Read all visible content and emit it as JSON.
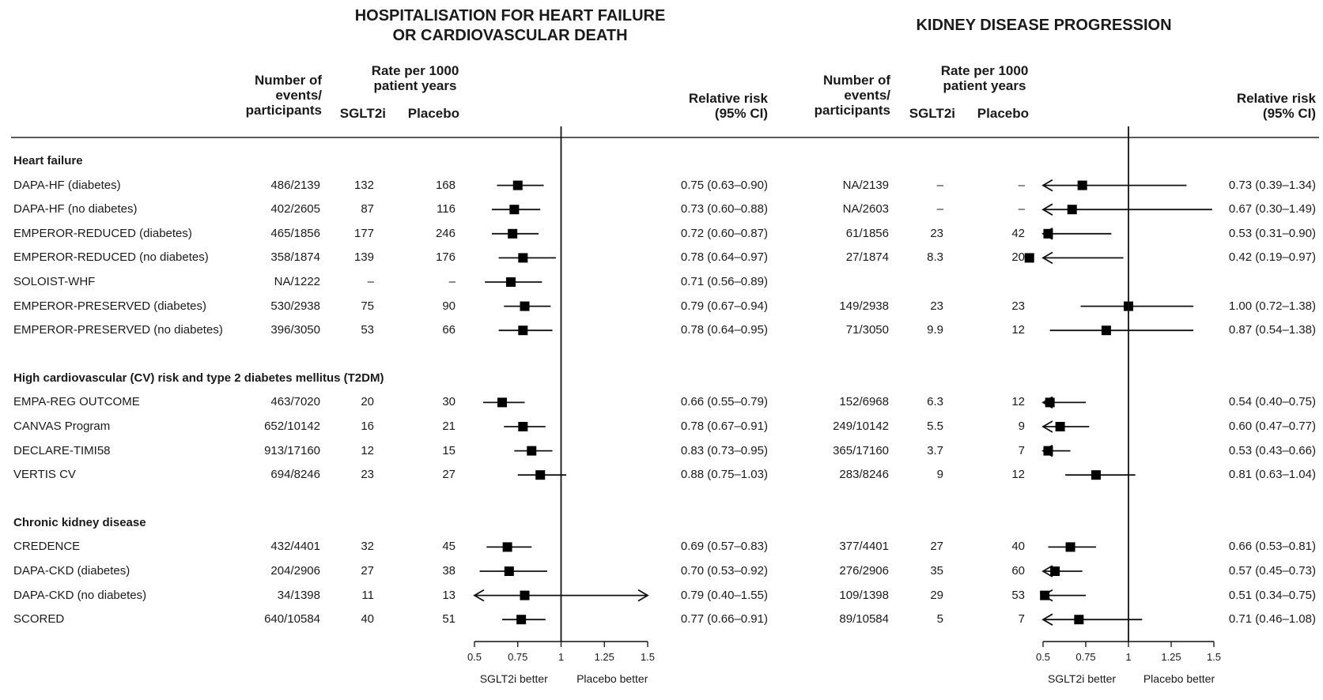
{
  "titles": {
    "left": "HOSPITALISATION FOR HEART FAILURE\nOR CARDIOVASCULAR DEATH",
    "right": "KIDNEY DISEASE PROGRESSION"
  },
  "headers": {
    "events": "Number of\nevents/\nparticipants",
    "rate": "Rate per 1000\npatient years",
    "sglt2i": "SGLT2i",
    "placebo": "Placebo",
    "rr": "Relative risk\n(95% CI)"
  },
  "axis": {
    "ticks": [
      "0.5",
      "0.75",
      "1",
      "1.25",
      "1.5"
    ],
    "left_label": "SGLT2i better",
    "right_label": "Placebo better"
  },
  "chart_data": {
    "type": "forest",
    "xlim": [
      0.5,
      1.5
    ],
    "reference_line": 1,
    "xticks": [
      0.5,
      0.75,
      1,
      1.25,
      1.5
    ],
    "groups": [
      {
        "name": "Heart failure",
        "rows": [
          {
            "trial": "DAPA-HF (diabetes)",
            "hf": {
              "events": "486/2139",
              "sglt2i": "132",
              "placebo": "168",
              "rr_text": "0.75 (0.63–0.90)",
              "rr": 0.75,
              "lo": 0.63,
              "hi": 0.9
            },
            "kd": {
              "events": "NA/2139",
              "sglt2i": "–",
              "placebo": "–",
              "rr_text": "0.73 (0.39–1.34)",
              "rr": 0.73,
              "lo": 0.39,
              "hi": 1.34
            }
          },
          {
            "trial": "DAPA-HF (no diabetes)",
            "hf": {
              "events": "402/2605",
              "sglt2i": "87",
              "placebo": "116",
              "rr_text": "0.73 (0.60–0.88)",
              "rr": 0.73,
              "lo": 0.6,
              "hi": 0.88
            },
            "kd": {
              "events": "NA/2603",
              "sglt2i": "–",
              "placebo": "–",
              "rr_text": "0.67 (0.30–1.49)",
              "rr": 0.67,
              "lo": 0.3,
              "hi": 1.49
            }
          },
          {
            "trial": "EMPEROR-REDUCED (diabetes)",
            "hf": {
              "events": "465/1856",
              "sglt2i": "177",
              "placebo": "246",
              "rr_text": "0.72 (0.60–0.87)",
              "rr": 0.72,
              "lo": 0.6,
              "hi": 0.87
            },
            "kd": {
              "events": "61/1856",
              "sglt2i": "23",
              "placebo": "42",
              "rr_text": "0.53 (0.31–0.90)",
              "rr": 0.53,
              "lo": 0.31,
              "hi": 0.9
            }
          },
          {
            "trial": "EMPEROR-REDUCED (no diabetes)",
            "hf": {
              "events": "358/1874",
              "sglt2i": "139",
              "placebo": "176",
              "rr_text": "0.78 (0.64–0.97)",
              "rr": 0.78,
              "lo": 0.64,
              "hi": 0.97
            },
            "kd": {
              "events": "27/1874",
              "sglt2i": "8.3",
              "placebo": "20",
              "rr_text": "0.42 (0.19–0.97)",
              "rr": 0.42,
              "lo": 0.19,
              "hi": 0.97
            }
          },
          {
            "trial": "SOLOIST-WHF",
            "hf": {
              "events": "NA/1222",
              "sglt2i": "–",
              "placebo": "–",
              "rr_text": "0.71 (0.56–0.89)",
              "rr": 0.71,
              "lo": 0.56,
              "hi": 0.89
            },
            "kd": null
          },
          {
            "trial": "EMPEROR-PRESERVED (diabetes)",
            "hf": {
              "events": "530/2938",
              "sglt2i": "75",
              "placebo": "90",
              "rr_text": "0.79 (0.67–0.94)",
              "rr": 0.79,
              "lo": 0.67,
              "hi": 0.94
            },
            "kd": {
              "events": "149/2938",
              "sglt2i": "23",
              "placebo": "23",
              "rr_text": "1.00 (0.72–1.38)",
              "rr": 1.0,
              "lo": 0.72,
              "hi": 1.38
            }
          },
          {
            "trial": "EMPEROR-PRESERVED (no diabetes)",
            "hf": {
              "events": "396/3050",
              "sglt2i": "53",
              "placebo": "66",
              "rr_text": "0.78 (0.64–0.95)",
              "rr": 0.78,
              "lo": 0.64,
              "hi": 0.95
            },
            "kd": {
              "events": "71/3050",
              "sglt2i": "9.9",
              "placebo": "12",
              "rr_text": "0.87 (0.54–1.38)",
              "rr": 0.87,
              "lo": 0.54,
              "hi": 1.38
            }
          }
        ]
      },
      {
        "name": "High cardiovascular (CV) risk and type 2 diabetes mellitus (T2DM)",
        "rows": [
          {
            "trial": "EMPA-REG OUTCOME",
            "hf": {
              "events": "463/7020",
              "sglt2i": "20",
              "placebo": "30",
              "rr_text": "0.66 (0.55–0.79)",
              "rr": 0.66,
              "lo": 0.55,
              "hi": 0.79
            },
            "kd": {
              "events": "152/6968",
              "sglt2i": "6.3",
              "placebo": "12",
              "rr_text": "0.54 (0.40–0.75)",
              "rr": 0.54,
              "lo": 0.4,
              "hi": 0.75
            }
          },
          {
            "trial": "CANVAS Program",
            "hf": {
              "events": "652/10142",
              "sglt2i": "16",
              "placebo": "21",
              "rr_text": "0.78 (0.67–0.91)",
              "rr": 0.78,
              "lo": 0.67,
              "hi": 0.91
            },
            "kd": {
              "events": "249/10142",
              "sglt2i": "5.5",
              "placebo": "9",
              "rr_text": "0.60 (0.47–0.77)",
              "rr": 0.6,
              "lo": 0.47,
              "hi": 0.77
            }
          },
          {
            "trial": "DECLARE-TIMI58",
            "hf": {
              "events": "913/17160",
              "sglt2i": "12",
              "placebo": "15",
              "rr_text": "0.83 (0.73–0.95)",
              "rr": 0.83,
              "lo": 0.73,
              "hi": 0.95
            },
            "kd": {
              "events": "365/17160",
              "sglt2i": "3.7",
              "placebo": "7",
              "rr_text": "0.53 (0.43–0.66)",
              "rr": 0.53,
              "lo": 0.43,
              "hi": 0.66
            }
          },
          {
            "trial": "VERTIS CV",
            "hf": {
              "events": "694/8246",
              "sglt2i": "23",
              "placebo": "27",
              "rr_text": "0.88 (0.75–1.03)",
              "rr": 0.88,
              "lo": 0.75,
              "hi": 1.03
            },
            "kd": {
              "events": "283/8246",
              "sglt2i": "9",
              "placebo": "12",
              "rr_text": "0.81 (0.63–1.04)",
              "rr": 0.81,
              "lo": 0.63,
              "hi": 1.04
            }
          }
        ]
      },
      {
        "name": "Chronic kidney disease",
        "rows": [
          {
            "trial": "CREDENCE",
            "hf": {
              "events": "432/4401",
              "sglt2i": "32",
              "placebo": "45",
              "rr_text": "0.69 (0.57–0.83)",
              "rr": 0.69,
              "lo": 0.57,
              "hi": 0.83
            },
            "kd": {
              "events": "377/4401",
              "sglt2i": "27",
              "placebo": "40",
              "rr_text": "0.66 (0.53–0.81)",
              "rr": 0.66,
              "lo": 0.53,
              "hi": 0.81
            }
          },
          {
            "trial": "DAPA-CKD (diabetes)",
            "hf": {
              "events": "204/2906",
              "sglt2i": "27",
              "placebo": "38",
              "rr_text": "0.70 (0.53–0.92)",
              "rr": 0.7,
              "lo": 0.53,
              "hi": 0.92
            },
            "kd": {
              "events": "276/2906",
              "sglt2i": "35",
              "placebo": "60",
              "rr_text": "0.57 (0.45–0.73)",
              "rr": 0.57,
              "lo": 0.45,
              "hi": 0.73
            }
          },
          {
            "trial": "DAPA-CKD (no diabetes)",
            "hf": {
              "events": "34/1398",
              "sglt2i": "11",
              "placebo": "13",
              "rr_text": "0.79 (0.40–1.55)",
              "rr": 0.79,
              "lo": 0.4,
              "hi": 1.55
            },
            "kd": {
              "events": "109/1398",
              "sglt2i": "29",
              "placebo": "53",
              "rr_text": "0.51 (0.34–0.75)",
              "rr": 0.51,
              "lo": 0.34,
              "hi": 0.75
            }
          },
          {
            "trial": "SCORED",
            "hf": {
              "events": "640/10584",
              "sglt2i": "40",
              "placebo": "51",
              "rr_text": "0.77 (0.66–0.91)",
              "rr": 0.77,
              "lo": 0.66,
              "hi": 0.91
            },
            "kd": {
              "events": "89/10584",
              "sglt2i": "5",
              "placebo": "7",
              "rr_text": "0.71 (0.46–1.08)",
              "rr": 0.71,
              "lo": 0.46,
              "hi": 1.08
            }
          }
        ]
      }
    ]
  }
}
